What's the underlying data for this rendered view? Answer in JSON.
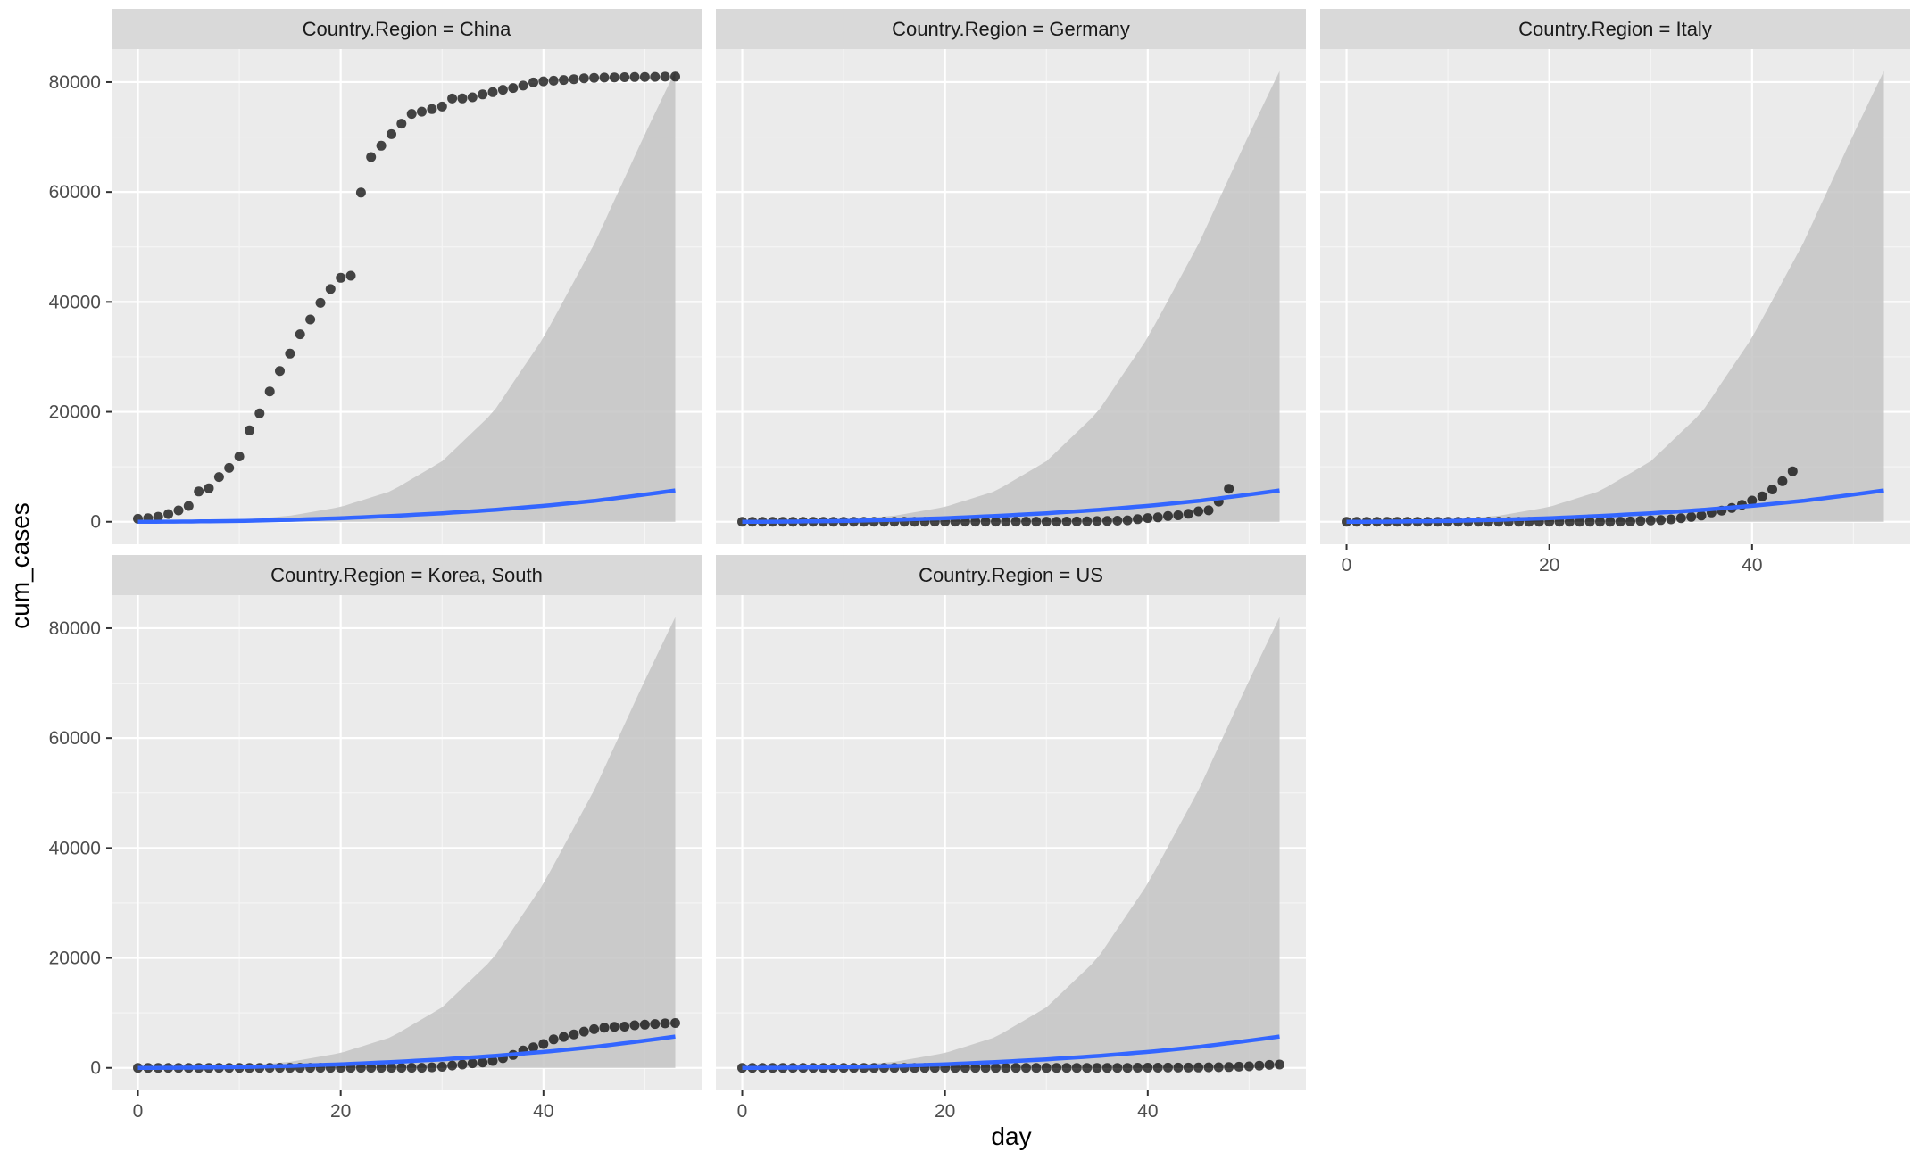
{
  "chart_data": {
    "type": "scatter",
    "facet_label_prefix": "Country.Region = ",
    "xlabel": "day",
    "ylabel": "cum_cases",
    "xlim": [
      -2.6,
      55.6
    ],
    "ylim": [
      -4100,
      86000
    ],
    "x_ticks": [
      0,
      20,
      40
    ],
    "x_ticks_minor": [
      10,
      30,
      50
    ],
    "y_ticks": [
      0,
      20000,
      40000,
      60000,
      80000
    ],
    "y_ticks_minor": [
      10000,
      30000,
      50000,
      70000
    ],
    "y_tick_labels": [
      "0",
      "20000",
      "40000",
      "60000",
      "80000"
    ],
    "x_tick_labels": [
      "0",
      "20",
      "40"
    ],
    "grid": true,
    "colors": {
      "panel_bg": "#ebebeb",
      "strip_bg": "#d9d9d9",
      "grid_major": "#ffffff",
      "grid_minor": "#f5f5f5",
      "point": "#000000",
      "smooth_line": "#3366ff",
      "ribbon": "#c4c4c4"
    },
    "smooth": {
      "x": [
        0,
        5,
        10,
        15,
        20,
        25,
        30,
        35,
        40,
        45,
        50,
        53
      ],
      "y": [
        0,
        40,
        150,
        350,
        650,
        1050,
        1550,
        2150,
        2900,
        3800,
        4950,
        5700
      ],
      "ribbon_upper": [
        0,
        80,
        320,
        1100,
        2700,
        5600,
        11000,
        19800,
        33500,
        50500,
        70500,
        82000
      ]
    },
    "panels": [
      {
        "name": "China",
        "x": [
          0,
          1,
          2,
          3,
          4,
          5,
          6,
          7,
          8,
          9,
          10,
          11,
          12,
          13,
          14,
          15,
          16,
          17,
          18,
          19,
          20,
          21,
          22,
          23,
          24,
          25,
          26,
          27,
          28,
          29,
          30,
          31,
          32,
          33,
          34,
          35,
          36,
          37,
          38,
          39,
          40,
          41,
          42,
          43,
          44,
          45,
          46,
          47,
          48,
          49,
          50,
          51,
          52,
          53
        ],
        "y": [
          548,
          643,
          920,
          1406,
          2075,
          2877,
          5509,
          6087,
          8141,
          9802,
          11891,
          16630,
          19716,
          23707,
          27440,
          30587,
          34110,
          36814,
          39829,
          42354,
          44386,
          44759,
          59895,
          66358,
          68413,
          70513,
          72434,
          74211,
          74619,
          75077,
          75550,
          77001,
          77022,
          77241,
          77754,
          78166,
          78600,
          78928,
          79356,
          79932,
          80136,
          80261,
          80386,
          80537,
          80690,
          80770,
          80823,
          80860,
          80887,
          80921,
          80932,
          80945,
          80977,
          81003
        ]
      },
      {
        "name": "Germany",
        "x": [
          0,
          1,
          2,
          3,
          4,
          5,
          6,
          7,
          8,
          9,
          10,
          11,
          12,
          13,
          14,
          15,
          16,
          17,
          18,
          19,
          20,
          21,
          22,
          23,
          24,
          25,
          26,
          27,
          28,
          29,
          30,
          31,
          32,
          33,
          34,
          35,
          36,
          37,
          38,
          39,
          40,
          41,
          42,
          43,
          44,
          45,
          46,
          47,
          48
        ],
        "y": [
          0,
          0,
          0,
          0,
          0,
          1,
          4,
          4,
          4,
          5,
          7,
          8,
          10,
          12,
          12,
          12,
          13,
          14,
          14,
          16,
          16,
          16,
          16,
          16,
          16,
          16,
          16,
          16,
          16,
          16,
          17,
          27,
          46,
          48,
          79,
          130,
          159,
          196,
          262,
          482,
          670,
          799,
          1040,
          1176,
          1457,
          1908,
          2078,
          3675,
          6012
        ]
      },
      {
        "name": "Italy",
        "x": [
          0,
          1,
          2,
          3,
          4,
          5,
          6,
          7,
          8,
          9,
          10,
          11,
          12,
          13,
          14,
          15,
          16,
          17,
          18,
          19,
          20,
          21,
          22,
          23,
          24,
          25,
          26,
          27,
          28,
          29,
          30,
          31,
          32,
          33,
          34,
          35,
          36,
          37,
          38,
          39,
          40,
          41,
          42,
          43,
          44
        ],
        "y": [
          0,
          0,
          0,
          0,
          0,
          0,
          0,
          0,
          0,
          2,
          2,
          2,
          2,
          2,
          3,
          3,
          3,
          3,
          3,
          3,
          3,
          3,
          3,
          3,
          3,
          3,
          3,
          20,
          62,
          155,
          229,
          322,
          453,
          655,
          888,
          1128,
          1694,
          2036,
          2502,
          3089,
          3858,
          4636,
          5883,
          7375,
          9172
        ]
      },
      {
        "name": "Korea, South",
        "x": [
          0,
          1,
          2,
          3,
          4,
          5,
          6,
          7,
          8,
          9,
          10,
          11,
          12,
          13,
          14,
          15,
          16,
          17,
          18,
          19,
          20,
          21,
          22,
          23,
          24,
          25,
          26,
          27,
          28,
          29,
          30,
          31,
          32,
          33,
          34,
          35,
          36,
          37,
          38,
          39,
          40,
          41,
          42,
          43,
          44,
          45,
          46,
          47,
          48,
          49,
          50,
          51,
          52,
          53
        ],
        "y": [
          1,
          1,
          2,
          2,
          3,
          4,
          4,
          4,
          4,
          11,
          12,
          15,
          15,
          16,
          19,
          23,
          24,
          24,
          25,
          27,
          28,
          28,
          28,
          28,
          28,
          29,
          30,
          31,
          31,
          104,
          204,
          433,
          602,
          833,
          977,
          1261,
          1766,
          2337,
          3150,
          3736,
          4335,
          5186,
          5621,
          6088,
          6593,
          7041,
          7314,
          7478,
          7513,
          7755,
          7869,
          7979,
          8086,
          8162
        ]
      },
      {
        "name": "US",
        "x": [
          0,
          1,
          2,
          3,
          4,
          5,
          6,
          7,
          8,
          9,
          10,
          11,
          12,
          13,
          14,
          15,
          16,
          17,
          18,
          19,
          20,
          21,
          22,
          23,
          24,
          25,
          26,
          27,
          28,
          29,
          30,
          31,
          32,
          33,
          34,
          35,
          36,
          37,
          38,
          39,
          40,
          41,
          42,
          43,
          44,
          45,
          46,
          47,
          48,
          49,
          50,
          51,
          52,
          53
        ],
        "y": [
          1,
          1,
          2,
          2,
          5,
          5,
          5,
          5,
          5,
          6,
          6,
          8,
          8,
          8,
          11,
          11,
          11,
          12,
          12,
          12,
          12,
          12,
          13,
          13,
          14,
          14,
          14,
          14,
          14,
          14,
          14,
          15,
          15,
          15,
          15,
          15,
          15,
          15,
          15,
          35,
          35,
          35,
          53,
          57,
          60,
          68,
          101,
          122,
          153,
          221,
          278,
          417,
          537,
          605
        ]
      }
    ]
  },
  "axis": {
    "x_title": "day",
    "y_title": "cum_cases"
  }
}
